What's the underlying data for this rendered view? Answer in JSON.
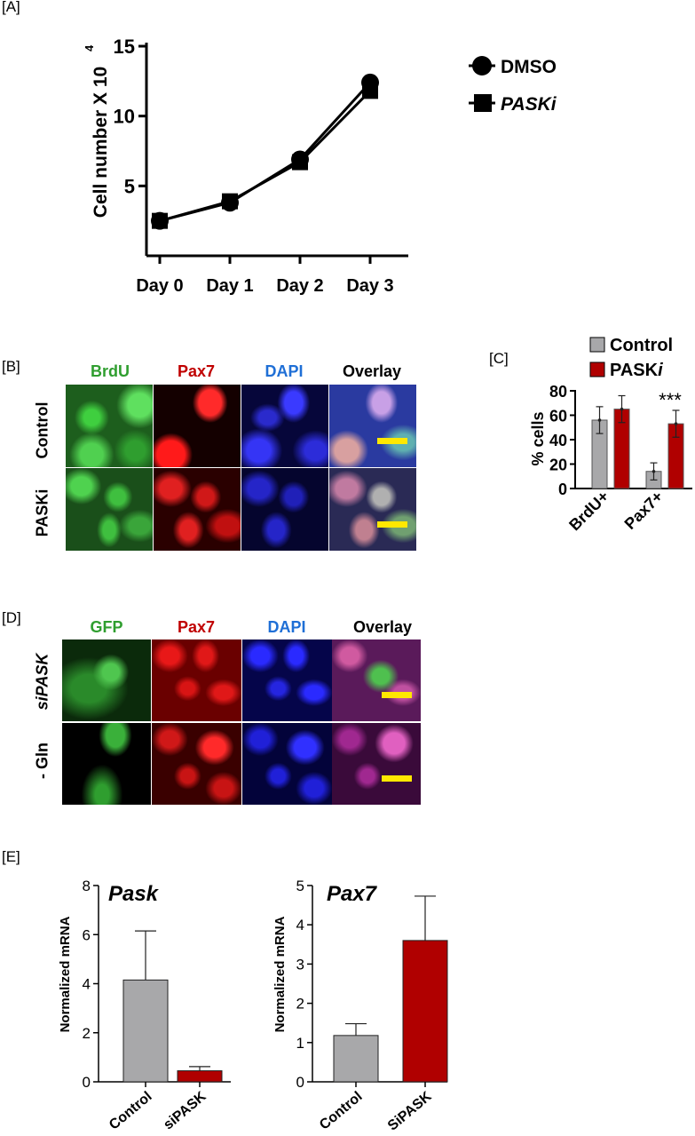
{
  "colors": {
    "green": "#2f9e2f",
    "red": "#c00000",
    "blue": "#1f6fd6",
    "black": "#000000",
    "gray_bar": "#a8a8aa",
    "red_bar": "#b00000",
    "scale_bar": "#ffe800"
  },
  "panel_A": {
    "label": "[A]",
    "chart_data": {
      "type": "line",
      "ylabel": "Cell number X 10",
      "ylabel_superscript": "4",
      "categories": [
        "Day 0",
        "Day 1",
        "Day 2",
        "Day 3"
      ],
      "yticks": [
        "5",
        "10",
        "15"
      ],
      "ylim": [
        0,
        15
      ],
      "series": [
        {
          "name": "DMSO",
          "marker": "circle",
          "values": [
            2.5,
            3.8,
            6.9,
            12.4
          ]
        },
        {
          "name": "PASKi",
          "marker": "square",
          "values": [
            2.5,
            3.9,
            6.7,
            11.8
          ]
        }
      ],
      "legend_position": "top-right"
    }
  },
  "panel_B": {
    "label": "[B]",
    "columns": [
      "BrdU",
      "Pax7",
      "DAPI",
      "Overlay"
    ],
    "rows": [
      "Control",
      "PASKi"
    ]
  },
  "panel_C": {
    "label": "[C]",
    "chart_data": {
      "type": "bar",
      "ylabel": "% cells",
      "categories": [
        "BrdU+",
        "Pax7+"
      ],
      "yticks": [
        "0",
        "20",
        "40",
        "60",
        "80"
      ],
      "ylim": [
        0,
        80
      ],
      "series": [
        {
          "name": "Control",
          "values": [
            56,
            14
          ],
          "errors": [
            11,
            7
          ]
        },
        {
          "name": "PASKi",
          "values": [
            65,
            53
          ],
          "errors": [
            11,
            11
          ]
        }
      ],
      "legend_position": "top",
      "legend_italic_suffix": "i",
      "legend_control": "Control",
      "legend_pask": "PASK",
      "annotation": "***"
    }
  },
  "panel_D": {
    "label": "[D]",
    "columns": [
      "GFP",
      "Pax7",
      "DAPI",
      "Overlay"
    ],
    "rows": [
      "siPASK",
      "- Gln"
    ],
    "row1_prefix": "si",
    "row1_suffix": "PASK"
  },
  "panel_E": {
    "label": "[E]",
    "chart_data": [
      {
        "type": "bar",
        "title": "Pask",
        "ylabel": "Normalized mRNA",
        "categories": [
          "Control",
          "siPASK"
        ],
        "values": [
          4.15,
          0.45
        ],
        "errors": [
          2.0,
          0.17
        ],
        "yticks": [
          "0",
          "2",
          "4",
          "6",
          "8"
        ],
        "ylim": [
          0,
          8
        ]
      },
      {
        "type": "bar",
        "title": "Pax7",
        "ylabel": "Normalized mRNA",
        "categories": [
          "Control",
          "SiPASK"
        ],
        "values": [
          1.18,
          3.6
        ],
        "errors": [
          0.3,
          1.13
        ],
        "yticks": [
          "0",
          "1",
          "2",
          "3",
          "4",
          "5"
        ],
        "ylim": [
          0,
          5
        ]
      }
    ]
  }
}
